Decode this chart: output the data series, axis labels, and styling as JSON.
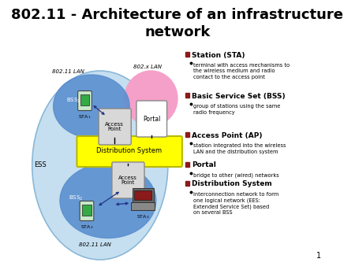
{
  "title": "802.11 - Architecture of an infrastructure\nnetwork",
  "title_fontsize": 13,
  "bg_color": "#ffffff",
  "ess_color": "#c5dff0",
  "bss_color": "#5b8fcf",
  "ds_color": "#ffff00",
  "portal_ellipse_color": "#f5a0c8",
  "ap_box_color": "#d8d8d8",
  "text_color": "#000000",
  "bullet_color": "#8b1a1a",
  "bullet_items": [
    {
      "title": "Station (STA)",
      "body": "terminal with access mechanisms to\nthe wireless medium and radio\ncontact to the access point"
    },
    {
      "title": "Basic Service Set (BSS)",
      "body": "group of stations using the same\nradio frequency"
    },
    {
      "title": "Access Point (AP)",
      "body": "station integrated into the wireless\nLAN and the distribution system"
    },
    {
      "title": "Portal",
      "body": "bridge to other (wired) networks"
    },
    {
      "title": "Distribution System",
      "body": "interconnection network to form\none logical network (EES:\nExtended Service Set) based\non several BSS"
    }
  ]
}
